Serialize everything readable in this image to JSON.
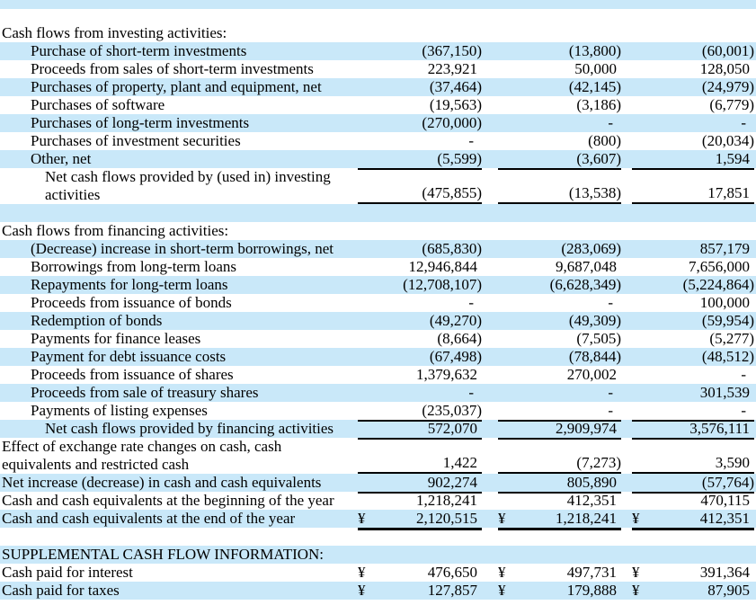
{
  "currency_symbol": "¥",
  "colors": {
    "stripe": "#c9e8f9",
    "text": "#000000",
    "rule": "#000000"
  },
  "statement": {
    "num_value_columns": 3,
    "rows": [
      {
        "label": "",
        "indent": 0,
        "shaded": true,
        "height": 10,
        "currency": false,
        "underline": "none",
        "values": [
          "",
          "",
          ""
        ]
      },
      {
        "label": "",
        "indent": 0,
        "shaded": false,
        "height": 17,
        "currency": false,
        "underline": "none",
        "values": [
          "",
          "",
          ""
        ]
      },
      {
        "label": "Cash flows from investing activities:",
        "indent": 0,
        "shaded": false,
        "height": 20,
        "currency": false,
        "underline": "none",
        "values": [
          "",
          "",
          ""
        ]
      },
      {
        "label": "Purchase of short-term investments",
        "indent": 1,
        "shaded": true,
        "height": 20,
        "currency": false,
        "underline": "none",
        "values": [
          "(367,150)",
          "(13,800)",
          "(60,001)"
        ]
      },
      {
        "label": "Proceeds from sales of short-term investments",
        "indent": 1,
        "shaded": false,
        "height": 20,
        "currency": false,
        "underline": "none",
        "values": [
          "223,921",
          "50,000",
          "128,050"
        ]
      },
      {
        "label": "Purchases of property, plant and equipment, net",
        "indent": 1,
        "shaded": true,
        "height": 20,
        "currency": false,
        "underline": "none",
        "values": [
          "(37,464)",
          "(42,145)",
          "(24,979)"
        ]
      },
      {
        "label": "Purchases of software",
        "indent": 1,
        "shaded": false,
        "height": 20,
        "currency": false,
        "underline": "none",
        "values": [
          "(19,563)",
          "(3,186)",
          "(6,779)"
        ]
      },
      {
        "label": "Purchases of long-term investments",
        "indent": 1,
        "shaded": true,
        "height": 20,
        "currency": false,
        "underline": "none",
        "values": [
          "(270,000)",
          "-",
          "-"
        ]
      },
      {
        "label": "Purchases of investment securities",
        "indent": 1,
        "shaded": false,
        "height": 20,
        "currency": false,
        "underline": "none",
        "values": [
          "-",
          "(800)",
          "(20,034)"
        ]
      },
      {
        "label": "Other, net",
        "indent": 1,
        "shaded": true,
        "height": 20,
        "currency": false,
        "underline": "single",
        "values": [
          "(5,599)",
          "(3,607)",
          "1,594"
        ]
      },
      {
        "label": "Net cash flows provided by (used in) investing\nactivities",
        "indent": 2,
        "shaded": false,
        "height": 40,
        "currency": false,
        "underline": "single",
        "values": [
          "(475,855)",
          "(13,538)",
          "17,851"
        ]
      },
      {
        "label": "",
        "indent": 0,
        "shaded": true,
        "height": 20,
        "currency": false,
        "underline": "none",
        "values": [
          "",
          "",
          ""
        ]
      },
      {
        "label": "Cash flows from financing activities:",
        "indent": 0,
        "shaded": false,
        "height": 20,
        "currency": false,
        "underline": "none",
        "values": [
          "",
          "",
          ""
        ]
      },
      {
        "label": "(Decrease) increase in short-term borrowings, net",
        "indent": 1,
        "shaded": true,
        "height": 20,
        "currency": false,
        "underline": "none",
        "values": [
          "(685,830)",
          "(283,069)",
          "857,179"
        ]
      },
      {
        "label": "Borrowings from long-term loans",
        "indent": 1,
        "shaded": false,
        "height": 20,
        "currency": false,
        "underline": "none",
        "values": [
          "12,946,844",
          "9,687,048",
          "7,656,000"
        ]
      },
      {
        "label": "Repayments for long-term loans",
        "indent": 1,
        "shaded": true,
        "height": 20,
        "currency": false,
        "underline": "none",
        "values": [
          "(12,708,107)",
          "(6,628,349)",
          "(5,224,864)"
        ]
      },
      {
        "label": "Proceeds from issuance of bonds",
        "indent": 1,
        "shaded": false,
        "height": 20,
        "currency": false,
        "underline": "none",
        "values": [
          "-",
          "-",
          "100,000"
        ]
      },
      {
        "label": "Redemption of bonds",
        "indent": 1,
        "shaded": true,
        "height": 20,
        "currency": false,
        "underline": "none",
        "values": [
          "(49,270)",
          "(49,309)",
          "(59,954)"
        ]
      },
      {
        "label": "Payments for finance leases",
        "indent": 1,
        "shaded": false,
        "height": 20,
        "currency": false,
        "underline": "none",
        "values": [
          "(8,664)",
          "(7,505)",
          "(5,277)"
        ]
      },
      {
        "label": "Payment for debt issuance costs",
        "indent": 1,
        "shaded": true,
        "height": 20,
        "currency": false,
        "underline": "none",
        "values": [
          "(67,498)",
          "(78,844)",
          "(48,512)"
        ]
      },
      {
        "label": "Proceeds from issuance of shares",
        "indent": 1,
        "shaded": false,
        "height": 20,
        "currency": false,
        "underline": "none",
        "values": [
          "1,379,632",
          "270,002",
          "-"
        ]
      },
      {
        "label": "Proceeds from sale of treasury shares",
        "indent": 1,
        "shaded": true,
        "height": 20,
        "currency": false,
        "underline": "none",
        "values": [
          "-",
          "-",
          "301,539"
        ]
      },
      {
        "label": "Payments of listing expenses",
        "indent": 1,
        "shaded": false,
        "height": 20,
        "currency": false,
        "underline": "single",
        "values": [
          "(235,037)",
          "-",
          "-"
        ]
      },
      {
        "label": "Net cash flows provided by financing activities",
        "indent": 2,
        "shaded": true,
        "height": 20,
        "currency": false,
        "underline": "single",
        "values": [
          "572,070",
          "2,909,974",
          "3,576,111"
        ]
      },
      {
        "label": "Effect of exchange rate changes on cash, cash\nequivalents and restricted cash",
        "indent": 0,
        "shaded": false,
        "height": 40,
        "currency": false,
        "underline": "single",
        "values": [
          "1,422",
          "(7,273)",
          "3,590"
        ]
      },
      {
        "label": "Net increase (decrease) in cash and cash equivalents",
        "indent": 0,
        "shaded": true,
        "height": 20,
        "currency": false,
        "underline": "single",
        "values": [
          "902,274",
          "805,890",
          "(57,764)"
        ]
      },
      {
        "label": "Cash and cash equivalents at the beginning of the year",
        "indent": 0,
        "shaded": false,
        "height": 20,
        "currency": false,
        "underline": "none",
        "values": [
          "1,218,241",
          "412,351",
          "470,115"
        ]
      },
      {
        "label": "Cash and cash equivalents at the end of the year",
        "indent": 0,
        "shaded": true,
        "height": 20,
        "currency": true,
        "underline": "thick",
        "values": [
          "2,120,515",
          "1,218,241",
          "412,351"
        ]
      },
      {
        "label": "",
        "indent": 0,
        "shaded": false,
        "height": 20,
        "currency": false,
        "underline": "none",
        "values": [
          "",
          "",
          ""
        ]
      },
      {
        "label": "SUPPLEMENTAL CASH FLOW INFORMATION:",
        "indent": 0,
        "shaded": true,
        "height": 20,
        "currency": false,
        "underline": "none",
        "values": [
          "",
          "",
          ""
        ]
      },
      {
        "label": "Cash paid for interest",
        "indent": 0,
        "shaded": false,
        "height": 20,
        "currency": true,
        "underline": "none",
        "values": [
          "476,650",
          "497,731",
          "391,364"
        ]
      },
      {
        "label": "Cash paid for taxes",
        "indent": 0,
        "shaded": true,
        "height": 20,
        "currency": true,
        "underline": "none",
        "values": [
          "127,857",
          "179,888",
          "87,905"
        ]
      }
    ]
  }
}
